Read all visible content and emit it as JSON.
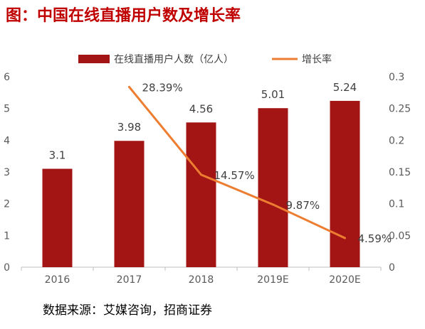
{
  "title": "图：中国在线直播用户数及增长率",
  "source": "数据来源：艾媒咨询，招商证券",
  "chart_data": {
    "type": "bar",
    "categories": [
      "2016",
      "2017",
      "2018",
      "2019E",
      "2020E"
    ],
    "series": [
      {
        "name": "在线直播用户人数（亿人）",
        "type": "bar",
        "axis": "left",
        "values": [
          3.1,
          3.98,
          4.56,
          5.01,
          5.24
        ],
        "labels": [
          "3.1",
          "3.98",
          "4.56",
          "5.01",
          "5.24"
        ],
        "color": "#a31515"
      },
      {
        "name": "增长率",
        "type": "line",
        "axis": "right",
        "values": [
          null,
          0.2839,
          0.1457,
          0.0987,
          0.0459
        ],
        "labels": [
          "",
          "28.39%",
          "14.57%",
          "9.87%",
          "4.59%"
        ],
        "color": "#ed7d31"
      }
    ],
    "y_left": {
      "lim": [
        0,
        6
      ],
      "ticks": [
        "0",
        "1",
        "2",
        "3",
        "4",
        "5",
        "6"
      ]
    },
    "y_right": {
      "lim": [
        0,
        0.3
      ],
      "ticks": [
        "0",
        "0.05",
        "0.1",
        "0.15",
        "0.2",
        "0.25",
        "0.3"
      ]
    },
    "legend": "top",
    "grid": false
  }
}
